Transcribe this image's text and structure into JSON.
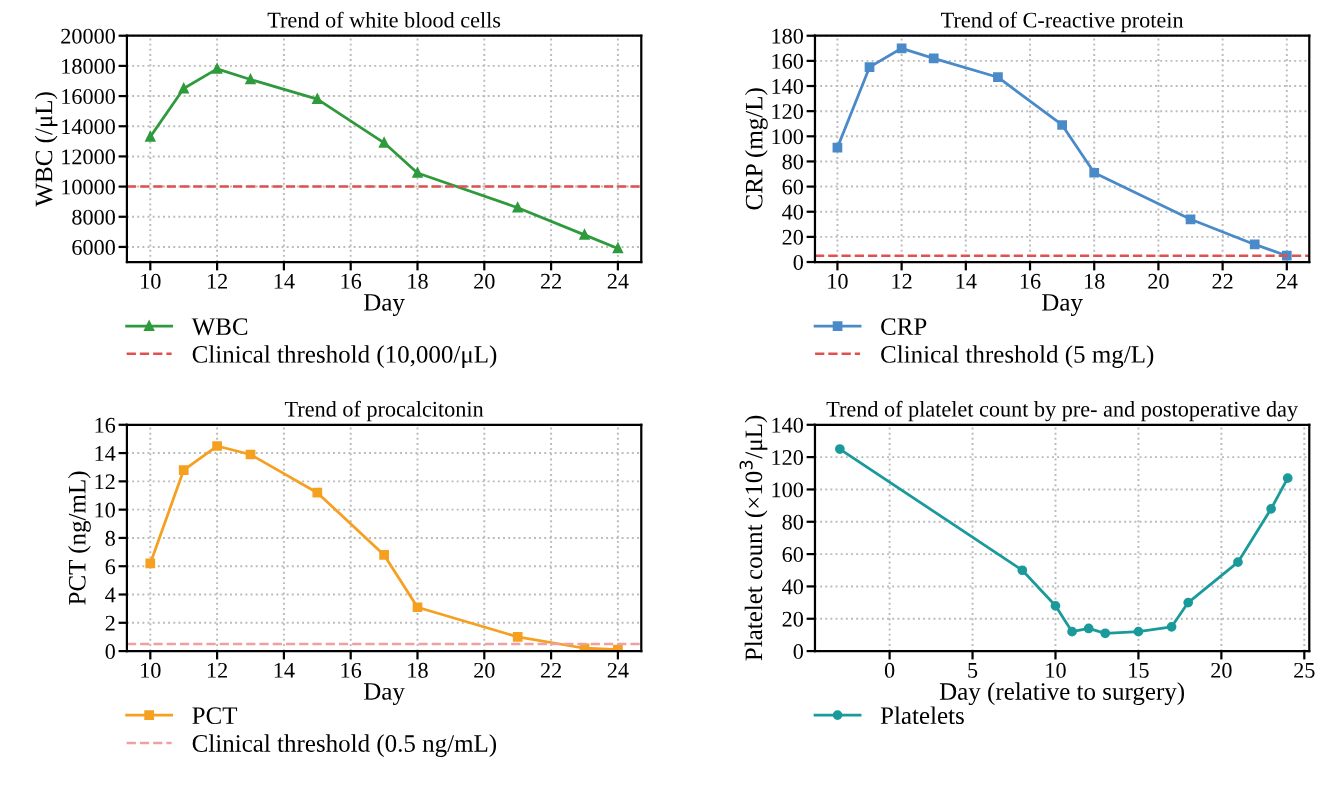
{
  "chart_data": [
    {
      "type": "line",
      "title": "Trend of white blood cells",
      "xlabel": "Day",
      "ylabel": "WBC (/μL)",
      "x": [
        10,
        11,
        12,
        13,
        15,
        17,
        18,
        21,
        23,
        24
      ],
      "series": [
        {
          "name": "WBC",
          "color": "#2e9a3c",
          "values": [
            13300,
            16500,
            17800,
            17100,
            15800,
            12900,
            10900,
            8600,
            6800,
            5900
          ]
        }
      ],
      "xlim": [
        9.3,
        24.7
      ],
      "xticks": [
        10,
        12,
        14,
        16,
        18,
        20,
        22,
        24
      ],
      "ylim": [
        5000,
        20000
      ],
      "yticks": [
        6000,
        8000,
        10000,
        12000,
        14000,
        16000,
        18000,
        20000
      ],
      "ref_lines": [
        {
          "axis": "y",
          "value": 10000,
          "label": "Clinical threshold (10,000/μL)",
          "color": "#e05050",
          "line_style": "dashed"
        }
      ],
      "marker": "triangle",
      "line_style": "solid",
      "grid": true,
      "legend": "bottom left"
    },
    {
      "type": "line",
      "title": "Trend of C-reactive protein",
      "xlabel": "Day",
      "ylabel": "CRP (mg/L)",
      "x": [
        10,
        11,
        12,
        13,
        15,
        17,
        18,
        21,
        23,
        24
      ],
      "series": [
        {
          "name": "CRP",
          "color": "#4a8ac8",
          "values": [
            91,
            155,
            170,
            162,
            147,
            109,
            71,
            34,
            14,
            5
          ]
        }
      ],
      "xlim": [
        9.3,
        24.7
      ],
      "xticks": [
        10,
        12,
        14,
        16,
        18,
        20,
        22,
        24
      ],
      "ylim": [
        0,
        180
      ],
      "yticks": [
        0,
        20,
        40,
        60,
        80,
        100,
        120,
        140,
        160,
        180
      ],
      "ref_lines": [
        {
          "axis": "y",
          "value": 5,
          "label": "Clinical threshold (5 mg/L)",
          "color": "#e05050",
          "line_style": "dashed"
        }
      ],
      "marker": "square",
      "line_style": "solid",
      "grid": true,
      "legend": "bottom left"
    },
    {
      "type": "line",
      "title": "Trend of procalcitonin",
      "xlabel": "Day",
      "ylabel": "PCT (ng/mL)",
      "x": [
        10,
        11,
        12,
        13,
        15,
        17,
        18,
        21,
        23,
        24
      ],
      "series": [
        {
          "name": "PCT",
          "color": "#f5a020",
          "values": [
            6.2,
            12.8,
            14.5,
            13.9,
            11.2,
            6.8,
            3.1,
            1.0,
            0.2,
            0.1
          ]
        }
      ],
      "xlim": [
        9.3,
        24.7
      ],
      "xticks": [
        10,
        12,
        14,
        16,
        18,
        20,
        22,
        24
      ],
      "ylim": [
        0,
        16
      ],
      "yticks": [
        0,
        2,
        4,
        6,
        8,
        10,
        12,
        14,
        16
      ],
      "ref_lines": [
        {
          "axis": "y",
          "value": 0.5,
          "label": "Clinical threshold (0.5 ng/mL)",
          "color": "#f0a0a0",
          "line_style": "dashed"
        }
      ],
      "marker": "square",
      "line_style": "solid",
      "grid": true,
      "legend": "bottom left"
    },
    {
      "type": "line",
      "title": "Trend of platelet count by pre- and postoperative day",
      "xlabel": "Day (relative to surgery)",
      "ylabel": "Platelet count (×10$^{3}$/μL)",
      "x": [
        -3,
        8,
        10,
        11,
        12,
        13,
        15,
        17,
        18,
        21,
        23,
        24
      ],
      "series": [
        {
          "name": "Platelets",
          "color": "#1a9a9a",
          "values": [
            125,
            50,
            28,
            12,
            14,
            11,
            12,
            15,
            30,
            55,
            88,
            107
          ]
        }
      ],
      "xlim": [
        -4.5,
        25.3
      ],
      "xticks": [
        0,
        5,
        10,
        15,
        20,
        25
      ],
      "ylim": [
        0,
        140
      ],
      "yticks": [
        0,
        20,
        40,
        60,
        80,
        100,
        120,
        140
      ],
      "marker": "circle",
      "line_style": "solid",
      "grid": true,
      "legend": "bottom left"
    }
  ]
}
